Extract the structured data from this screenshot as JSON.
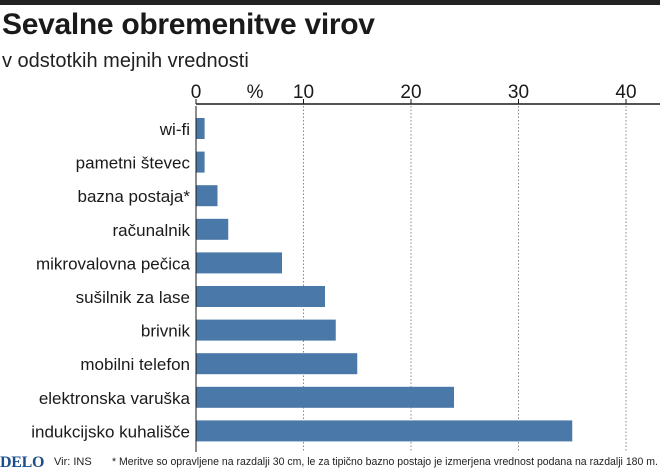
{
  "title": "Sevalne obremenitve virov",
  "subtitle": "v odstotkih mejnih vrednosti",
  "colors": {
    "bar": "#4a78a8",
    "grid": "#888888",
    "text": "#1a1a1a",
    "brand": "#1b4e8c"
  },
  "chart_data": {
    "type": "bar",
    "orientation": "horizontal",
    "unit_label": "%",
    "categories": [
      "wi-fi",
      "pametni števec",
      "bazna postaja*",
      "računalnik",
      "mikrovalovna pečica",
      "sušilnik za lase",
      "brivnik",
      "mobilni telefon",
      "elektronska varuška",
      "indukcijsko kuhališče"
    ],
    "values": [
      0.8,
      0.8,
      2,
      3,
      8,
      12,
      13,
      15,
      24,
      35
    ],
    "xlim": [
      0,
      42
    ],
    "xticks": [
      0,
      10,
      20,
      30,
      40
    ],
    "grid": "vertical dotted",
    "legend": "none"
  },
  "footer": {
    "brand": "DELO",
    "source": "Vir: INS",
    "note": "* Meritve so opravljene na razdalji 30 cm, le za tipično bazno postajo je izmerjena vrednost podana na razdalji 180 m."
  }
}
